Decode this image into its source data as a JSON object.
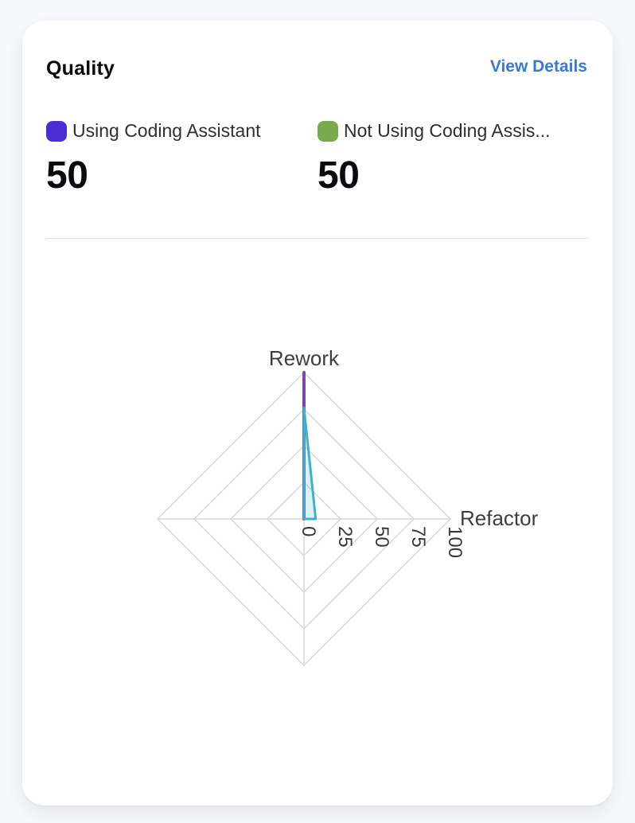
{
  "card": {
    "title": "Quality",
    "view_details_label": "View Details"
  },
  "legend": {
    "items": [
      {
        "name": "Using Coding Assistant",
        "display_label": "Using Coding Assistant",
        "value": "50",
        "swatch_color": "#4d2ed6"
      },
      {
        "name": "Not Using Coding Assistant",
        "display_label": "Not Using Coding Assis...",
        "value": "50",
        "swatch_color": "#7aa84c"
      }
    ]
  },
  "chart_data": {
    "type": "radar",
    "title": "Quality",
    "axes": [
      "Rework",
      "Refactor",
      "",
      ""
    ],
    "max": 100,
    "rings": 4,
    "ticks": [
      "0",
      "25",
      "50",
      "75",
      "100"
    ],
    "grid_color": "#d7d7d7",
    "tick_color": "#38383c",
    "axis_label_color": "#3d3d44",
    "series": [
      {
        "name": "Using Coding Assistant",
        "color": "#7e45ad",
        "fill": "none",
        "stroke_width": 4,
        "values": [
          100,
          0,
          0,
          0
        ]
      },
      {
        "name": "Not Using Coding Assistant",
        "color": "#41b2c6",
        "fill": "rgba(65,178,198,0.18)",
        "stroke_width": 3,
        "values": [
          76,
          8,
          0,
          0
        ]
      }
    ]
  }
}
